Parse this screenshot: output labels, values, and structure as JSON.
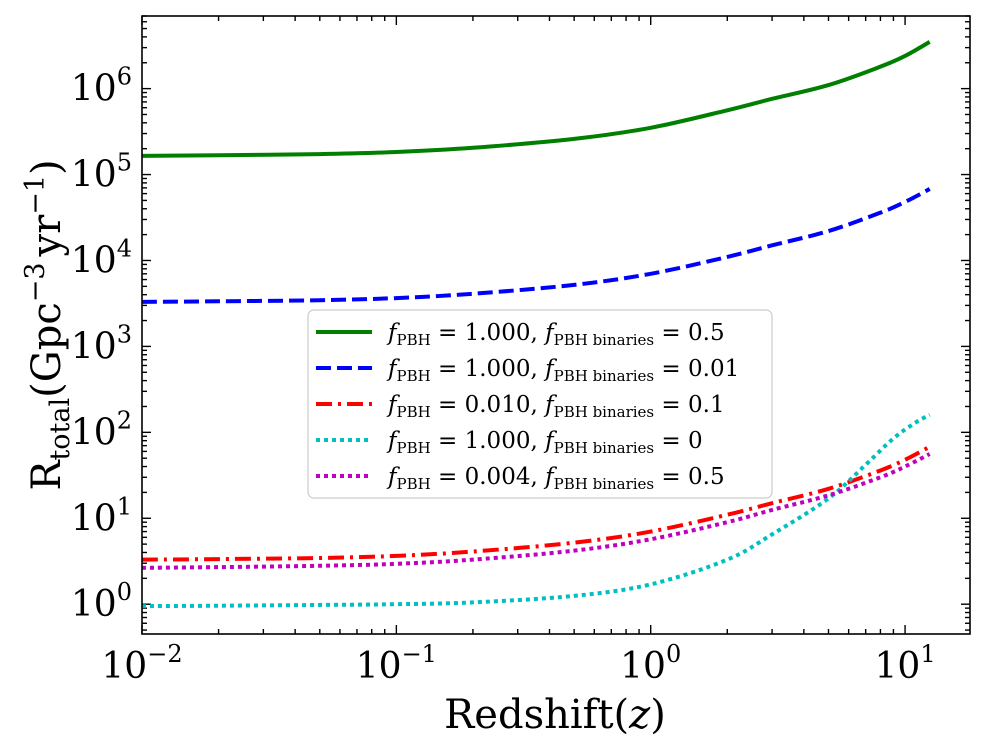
{
  "chart_data": {
    "type": "line",
    "title": "",
    "xlabel": "Redshift(z)",
    "ylabel": "R_total(Gpc^-3 yr^-1)",
    "xlabel_parts": {
      "text": "Redshift(",
      "var": "z",
      "close": ")"
    },
    "ylabel_parts": {
      "R": "R",
      "sub": "total",
      "open": "(Gpc",
      "exp1": "−3",
      "mid": "yr",
      "exp2": "−1",
      "close": ")"
    },
    "xscale": "log",
    "yscale": "log",
    "xlim": [
      0.01,
      18
    ],
    "ylim": [
      0.45,
      7000000
    ],
    "x_ticks": [
      {
        "base": "10",
        "exp": "−2",
        "value": 0.01
      },
      {
        "base": "10",
        "exp": "−1",
        "value": 0.1
      },
      {
        "base": "10",
        "exp": "0",
        "value": 1
      },
      {
        "base": "10",
        "exp": "1",
        "value": 10
      }
    ],
    "y_ticks": [
      {
        "base": "10",
        "exp": "0",
        "value": 1
      },
      {
        "base": "10",
        "exp": "1",
        "value": 10
      },
      {
        "base": "10",
        "exp": "2",
        "value": 100
      },
      {
        "base": "10",
        "exp": "3",
        "value": 1000
      },
      {
        "base": "10",
        "exp": "4",
        "value": 10000
      },
      {
        "base": "10",
        "exp": "5",
        "value": 100000
      },
      {
        "base": "10",
        "exp": "6",
        "value": 1000000
      }
    ],
    "legend_position": "center",
    "series": [
      {
        "name": "f_PBH = 1.000, f_PBH binaries = 0.5",
        "label_parts": {
          "f1": "f",
          "s1": "PBH",
          "v1": " = 1.000, ",
          "f2": "f",
          "s2": "PBH binaries",
          "v2": " = 0.5"
        },
        "color": "#007f00",
        "style": "solid",
        "x": [
          0.01,
          0.02,
          0.05,
          0.1,
          0.2,
          0.5,
          1,
          2,
          3,
          5,
          8,
          10,
          12.5
        ],
        "y": [
          165000,
          168000,
          173000,
          183000,
          205000,
          260000,
          350000,
          560000,
          760000,
          1100000,
          1800000,
          2400000,
          3500000
        ]
      },
      {
        "name": "f_PBH = 1.000, f_PBH binaries = 0.01",
        "label_parts": {
          "f1": "f",
          "s1": "PBH",
          "v1": " = 1.000, ",
          "f2": "f",
          "s2": "PBH binaries",
          "v2": " = 0.01"
        },
        "color": "#0000ff",
        "style": "dashed",
        "x": [
          0.01,
          0.02,
          0.05,
          0.1,
          0.2,
          0.5,
          1,
          2,
          3,
          5,
          8,
          10,
          12.5
        ],
        "y": [
          3300,
          3350,
          3450,
          3650,
          4100,
          5200,
          7000,
          11000,
          15000,
          22000,
          36000,
          48000,
          68000
        ]
      },
      {
        "name": "f_PBH = 0.010, f_PBH binaries = 0.1",
        "label_parts": {
          "f1": "f",
          "s1": "PBH",
          "v1": " = 0.010, ",
          "f2": "f",
          "s2": "PBH binaries",
          "v2": " = 0.1"
        },
        "color": "#ff0000",
        "style": "dashdot",
        "x": [
          0.01,
          0.02,
          0.05,
          0.1,
          0.2,
          0.5,
          1,
          2,
          3,
          5,
          8,
          10,
          12.5
        ],
        "y": [
          3.3,
          3.35,
          3.45,
          3.65,
          4.1,
          5.2,
          7.0,
          11,
          15,
          22,
          36,
          48,
          68
        ]
      },
      {
        "name": "f_PBH = 1.000, f_PBH binaries = 0",
        "label_parts": {
          "f1": "f",
          "s1": "PBH",
          "v1": " = 1.000, ",
          "f2": "f",
          "s2": "PBH binaries",
          "v2": " = 0"
        },
        "color": "#00bfbf",
        "style": "dotted",
        "x": [
          0.01,
          0.02,
          0.05,
          0.1,
          0.2,
          0.5,
          1,
          2,
          3,
          5,
          7,
          9,
          11,
          12.5
        ],
        "y": [
          0.95,
          0.96,
          0.98,
          1.0,
          1.05,
          1.25,
          1.7,
          3.3,
          6.5,
          17,
          42,
          85,
          130,
          160
        ]
      },
      {
        "name": "f_PBH = 0.004, f_PBH binaries = 0.5",
        "label_parts": {
          "f1": "f",
          "s1": "PBH",
          "v1": " = 0.004, ",
          "f2": "f",
          "s2": "PBH binaries",
          "v2": " = 0.5"
        },
        "color": "#bf00bf",
        "style": "dotted",
        "x": [
          0.01,
          0.02,
          0.05,
          0.1,
          0.2,
          0.5,
          1,
          2,
          3,
          5,
          8,
          10,
          12.5
        ],
        "y": [
          2.65,
          2.7,
          2.8,
          2.95,
          3.3,
          4.2,
          5.7,
          9,
          12.5,
          18.5,
          30,
          40,
          56
        ]
      }
    ]
  }
}
